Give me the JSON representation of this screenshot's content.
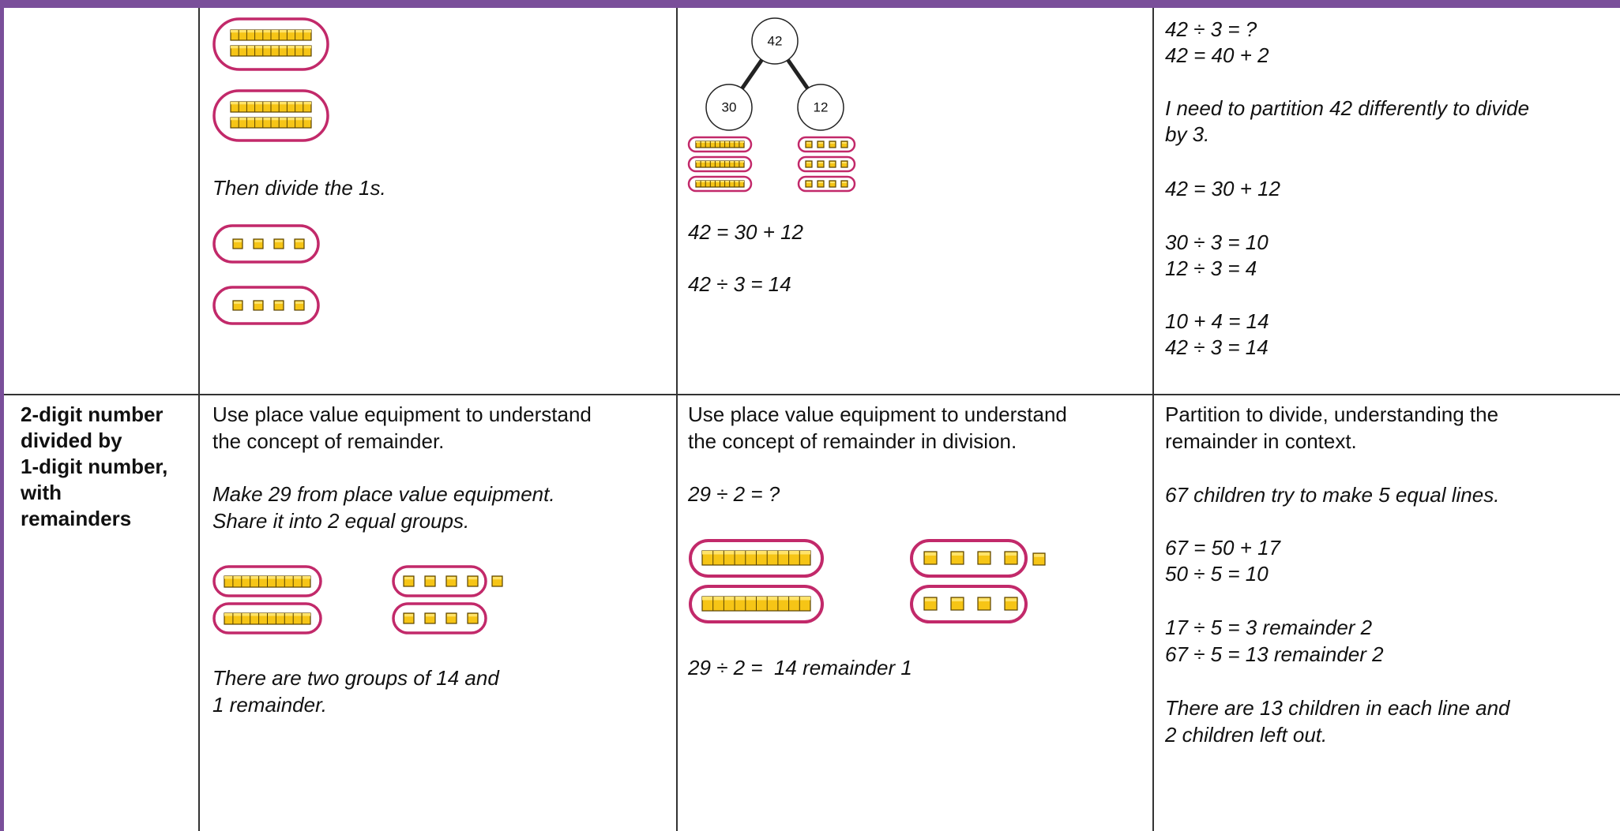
{
  "table": {
    "rows": [
      {
        "cells": {
          "concrete": [
            "Then divide the 1s."
          ],
          "pictorial": {
            "tree": [
              "42",
              "30",
              "12"
            ],
            "lines": [
              "42 = 30 + 12",
              "42 ÷ 3 = 14"
            ]
          },
          "abstract": [
            "42 ÷ 3 = ?",
            "42 = 40 + 2",
            "I need to partition 42 differently to divide",
            "by 3.",
            "42 = 30 + 12",
            "30 ÷ 3 = 10",
            "12 ÷ 3 = 4",
            "10 + 4 = 14",
            "42 ÷ 3 = 14"
          ]
        }
      },
      {
        "heading": [
          "2-digit number",
          "divided by",
          "1-digit number,",
          "with",
          "remainders"
        ],
        "cells": {
          "concrete": [
            "Use place value equipment to understand",
            "the concept of remainder.",
            "Make 29 from place value equipment.",
            "Share it into 2 equal groups.",
            "There are two groups of 14 and",
            "1 remainder."
          ],
          "pictorial": {
            "lines": [
              "Use place value equipment to understand",
              "the concept of remainder in division.",
              "29 ÷ 2 = ?",
              "29 ÷ 2 =  14 remainder 1"
            ]
          },
          "abstract": [
            "Partition to divide, understanding the",
            "remainder in context.",
            "67 children try to make 5 equal lines.",
            "67 = 50 + 17",
            "50 ÷ 5 = 10",
            "17 ÷ 5 = 3 remainder 2",
            "67 ÷ 5 = 13 remainder 2",
            "There are 13 children in each line and",
            "2 children left out."
          ]
        }
      }
    ]
  }
}
